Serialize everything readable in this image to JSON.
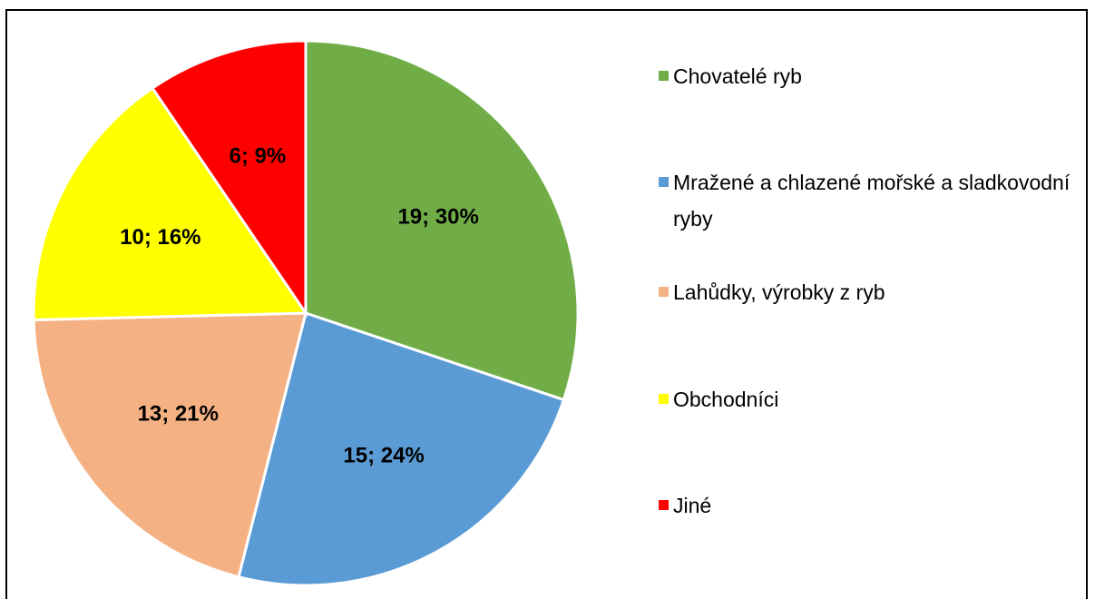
{
  "chart_data": {
    "type": "pie",
    "categories": [
      "Chovatelé ryb",
      "Mražené a chlazené mořské a sladkovodní ryby",
      "Lahůdky, výrobky z ryb",
      "Obchodníci",
      "Jiné"
    ],
    "values": [
      19,
      15,
      13,
      10,
      6
    ],
    "value_labels": [
      "19; 30%",
      "15; 24%",
      "13; 21%",
      "10; 16%",
      "6; 9%"
    ],
    "colors": [
      "#70ad47",
      "#5b9bd5",
      "#f4b183",
      "#ffff00",
      "#ff0000"
    ],
    "legend": "right"
  }
}
